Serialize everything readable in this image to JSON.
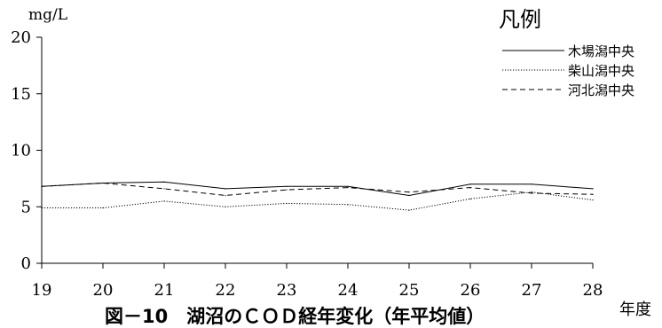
{
  "chart_data": {
    "type": "line",
    "title": "図－10　湖沼のＣＯＤ経年変化（年平均値）",
    "xlabel": "年度",
    "ylabel": "mg/L",
    "x": [
      "19",
      "20",
      "21",
      "22",
      "23",
      "24",
      "25",
      "26",
      "27",
      "28"
    ],
    "yticks": [
      "0",
      "5",
      "10",
      "15",
      "20"
    ],
    "ylim": [
      0,
      20
    ],
    "grid": false,
    "legend_title": "凡例",
    "legend_position": "top-right",
    "series": [
      {
        "name": "木場潟中央",
        "style": "solid",
        "color": "#000000",
        "values": [
          6.8,
          7.1,
          7.2,
          6.6,
          6.8,
          6.8,
          6.0,
          7.0,
          7.0,
          6.6
        ]
      },
      {
        "name": "柴山潟中央",
        "style": "dotted",
        "color": "#000000",
        "values": [
          4.9,
          4.9,
          5.5,
          5.0,
          5.3,
          5.2,
          4.7,
          5.7,
          6.3,
          5.6
        ]
      },
      {
        "name": "河北潟中央",
        "style": "dashed",
        "color": "#000000",
        "values": [
          6.8,
          7.1,
          6.6,
          6.0,
          6.5,
          6.7,
          6.3,
          6.7,
          6.2,
          6.1
        ]
      }
    ]
  }
}
